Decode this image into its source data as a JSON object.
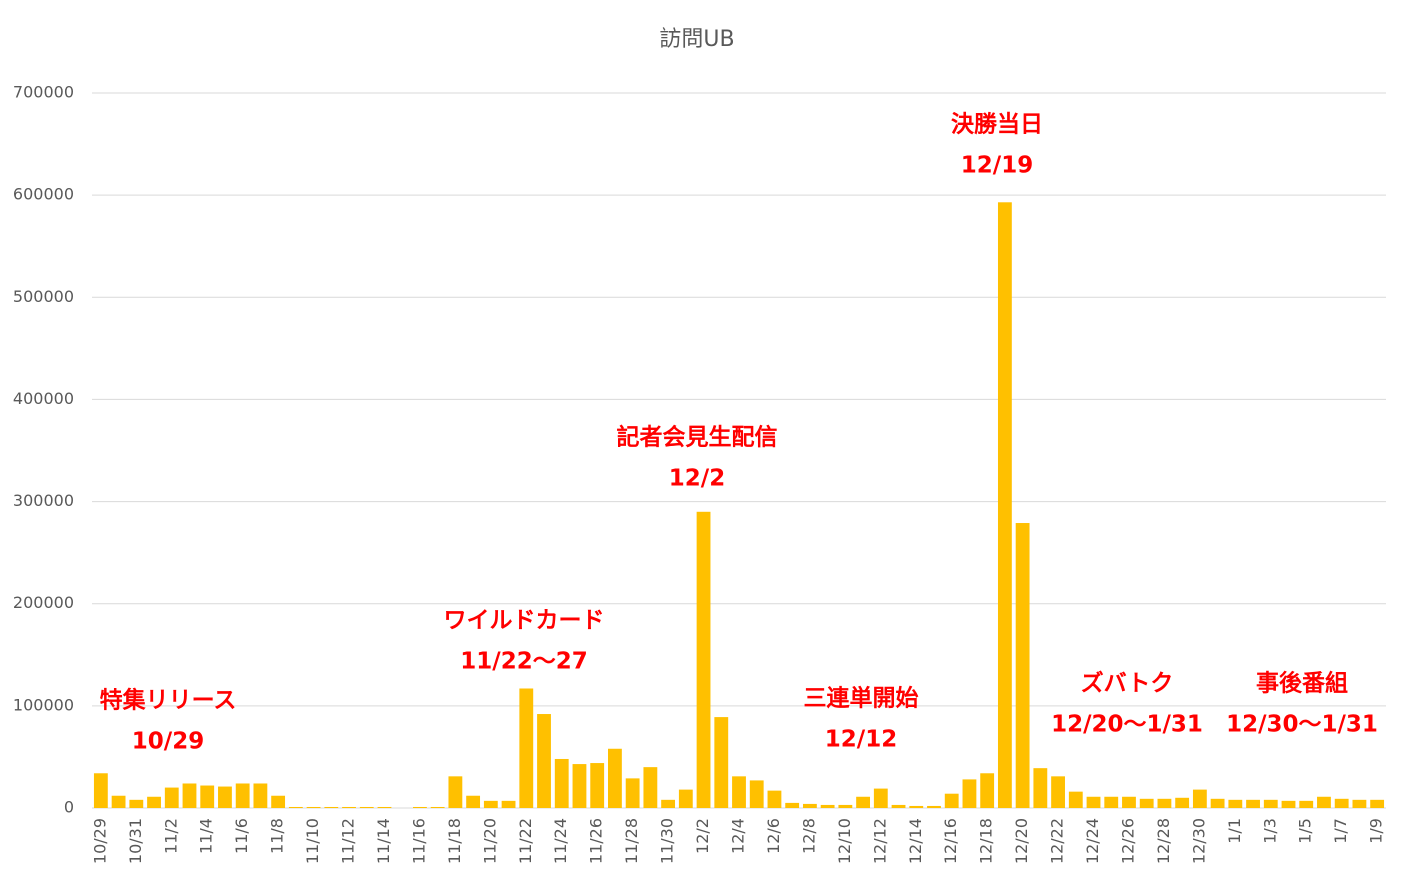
{
  "chart_data": {
    "type": "bar",
    "title": "訪問UB",
    "categories": [
      "10/29",
      null,
      "10/31",
      null,
      "11/2",
      null,
      "11/4",
      null,
      "11/6",
      null,
      "11/8",
      null,
      "11/10",
      null,
      "11/12",
      null,
      "11/14",
      null,
      "11/16",
      null,
      "11/18",
      null,
      "11/20",
      null,
      "11/22",
      null,
      "11/24",
      null,
      "11/26",
      null,
      "11/28",
      null,
      "11/30",
      null,
      "12/2",
      null,
      "12/4",
      null,
      "12/6",
      null,
      "12/8",
      null,
      "12/10",
      null,
      "12/12",
      null,
      "12/14",
      null,
      "12/16",
      null,
      "12/18",
      null,
      "12/20",
      null,
      "12/22",
      null,
      "12/24",
      null,
      "12/26",
      null,
      "12/28",
      null,
      "12/30",
      null,
      "1/1",
      null,
      "1/3",
      null,
      "1/5",
      null,
      "1/7",
      null,
      "1/9"
    ],
    "values": [
      34000,
      12000,
      8000,
      11000,
      20000,
      24000,
      22000,
      21000,
      24000,
      24000,
      12000,
      1000,
      1000,
      1000,
      1000,
      1000,
      1000,
      0,
      1000,
      1000,
      31000,
      12000,
      7000,
      7000,
      117000,
      92000,
      48000,
      43000,
      44000,
      58000,
      29000,
      40000,
      8000,
      18000,
      290000,
      89000,
      31000,
      27000,
      17000,
      5000,
      4000,
      3000,
      3000,
      11000,
      19000,
      3000,
      2000,
      2000,
      14000,
      28000,
      34000,
      593000,
      279000,
      39000,
      31000,
      16000,
      11000,
      11000,
      11000,
      9000,
      9000,
      10000,
      18000,
      9000,
      8000,
      8000,
      8000,
      7000,
      7000,
      11000,
      9000,
      8000,
      8000
    ],
    "color": "#ffc000",
    "ylim": [
      0,
      700000
    ],
    "yticks": [
      0,
      100000,
      200000,
      300000,
      400000,
      500000,
      600000,
      700000
    ],
    "grid": true,
    "annotations": [
      {
        "lines": [
          "特集リリース",
          "10/29"
        ],
        "color": "#ff0000"
      },
      {
        "lines": [
          "ワイルドカード",
          "11/22〜27"
        ],
        "color": "#ff0000"
      },
      {
        "lines": [
          "記者会見生配信",
          "12/2"
        ],
        "color": "#ff0000"
      },
      {
        "lines": [
          "三連単開始",
          "12/12"
        ],
        "color": "#ff0000"
      },
      {
        "lines": [
          "決勝当日",
          "12/19"
        ],
        "color": "#ff0000"
      },
      {
        "lines": [
          "ズバトク",
          "12/20〜1/31"
        ],
        "color": "#ff0000"
      },
      {
        "lines": [
          "事後番組",
          "12/30〜1/31"
        ],
        "color": "#ff0000"
      }
    ]
  }
}
